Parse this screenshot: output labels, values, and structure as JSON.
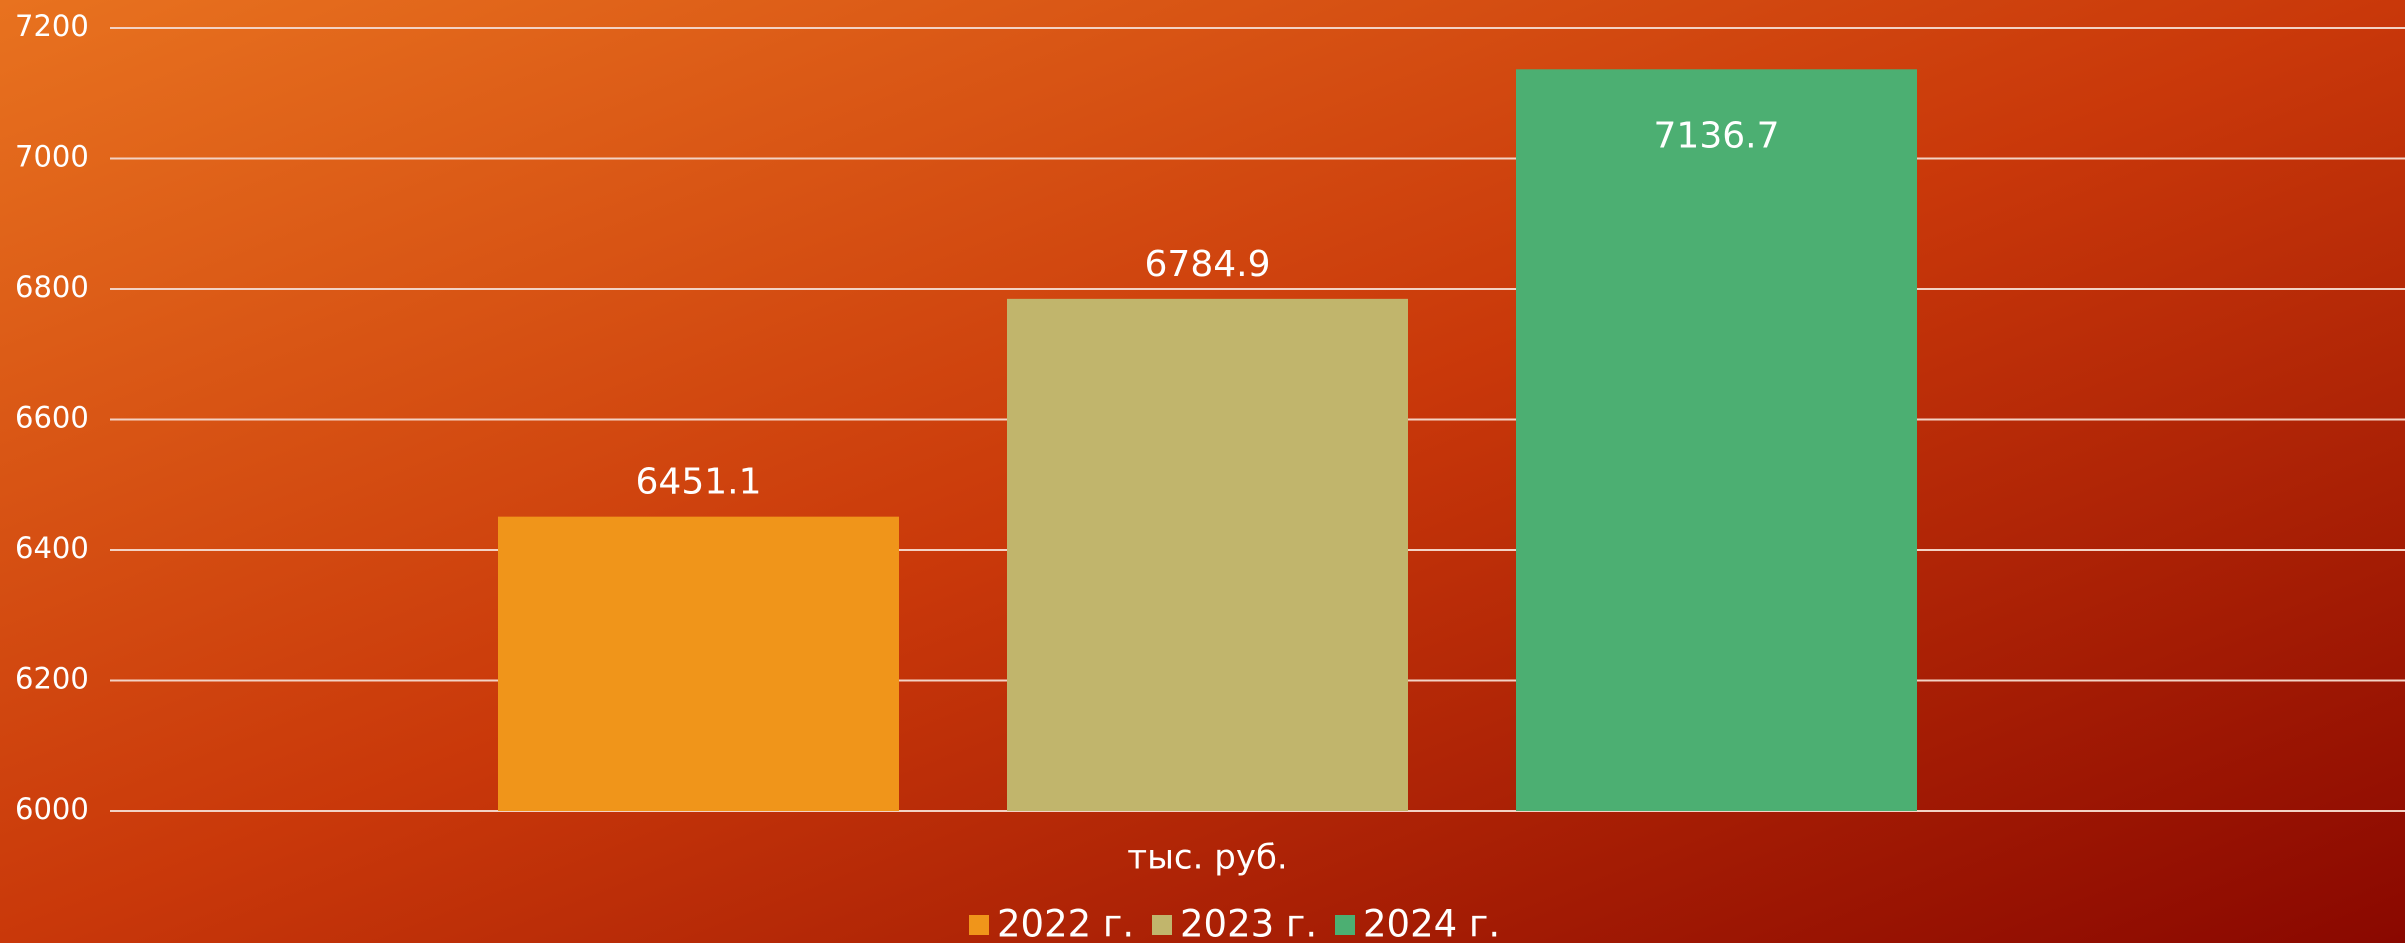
{
  "chart_data": {
    "type": "bar",
    "categories": [
      "тыс. руб."
    ],
    "series": [
      {
        "name": "2022 г.",
        "color": "#f0951a",
        "values": [
          6451.1
        ]
      },
      {
        "name": "2023 г.",
        "color": "#c1b56c",
        "values": [
          6784.9
        ]
      },
      {
        "name": "2024 г.",
        "color": "#4caf72",
        "values": [
          7136.7
        ]
      }
    ],
    "ylim": [
      6000,
      7200
    ],
    "yticks": [
      6000,
      6200,
      6400,
      6600,
      6800,
      7000,
      7200
    ],
    "grid": true,
    "legend": "bottom"
  }
}
